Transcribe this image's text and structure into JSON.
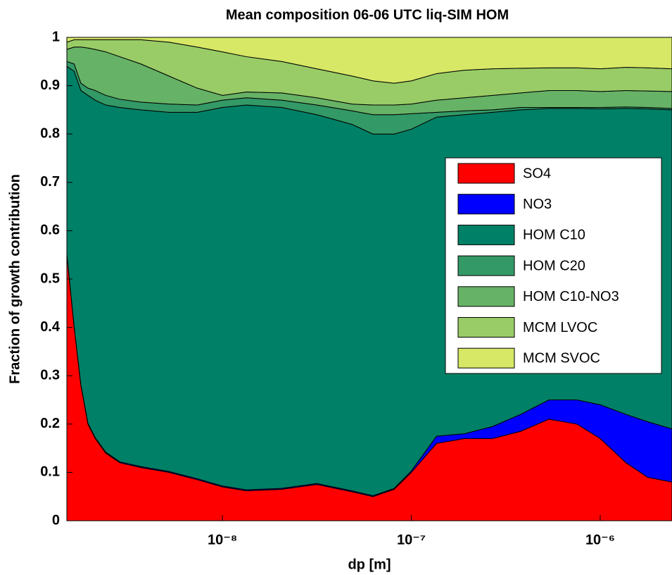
{
  "chart_data": {
    "type": "stacked_area",
    "title": "Mean composition 06-06 UTC liq-SIM HOM",
    "x_label": "dp [m]",
    "y_label": "Fraction of growth contribution",
    "x_log": true,
    "xlim": [
      1.5e-09,
      2.4e-06
    ],
    "ylim": [
      0,
      1
    ],
    "xticks": [
      {
        "value": 1e-08,
        "label": "10⁻⁸"
      },
      {
        "value": 1e-07,
        "label": "10⁻⁷"
      },
      {
        "value": 1e-06,
        "label": "10⁻⁶"
      }
    ],
    "yticks": [
      0,
      0.1,
      0.2,
      0.3,
      0.4,
      0.5,
      0.6,
      0.7,
      0.8,
      0.9,
      1
    ],
    "legend": "right",
    "x": [
      1.5e-09,
      1.64e-09,
      1.78e-09,
      1.94e-09,
      2.12e-09,
      2.41e-09,
      2.86e-09,
      3.7e-09,
      5.21e-09,
      7.35e-09,
      1e-08,
      1.34e-08,
      2.06e-08,
      3.16e-08,
      4.85e-08,
      6.27e-08,
      8.11e-08,
      1e-07,
      1.36e-07,
      1.91e-07,
      2.69e-07,
      3.79e-07,
      5.35e-07,
      7.53e-07,
      1e-06,
      1.37e-06,
      1.78e-06,
      2.4e-06
    ],
    "series": [
      {
        "name": "SO4",
        "color": "#ff0000",
        "values": [
          0.55,
          0.4,
          0.28,
          0.2,
          0.17,
          0.14,
          0.12,
          0.11,
          0.1,
          0.085,
          0.07,
          0.062,
          0.065,
          0.075,
          0.06,
          0.05,
          0.065,
          0.1,
          0.16,
          0.17,
          0.17,
          0.185,
          0.21,
          0.2,
          0.17,
          0.12,
          0.09,
          0.08
        ]
      },
      {
        "name": "NO3",
        "color": "#0000ff",
        "values": [
          0.002,
          0.002,
          0.002,
          0.002,
          0.002,
          0.002,
          0.002,
          0.002,
          0.002,
          0.002,
          0.002,
          0.002,
          0.002,
          0.002,
          0.002,
          0.002,
          0.002,
          0.003,
          0.015,
          0.01,
          0.025,
          0.035,
          0.04,
          0.05,
          0.07,
          0.1,
          0.115,
          0.11
        ]
      },
      {
        "name": "HOM C10",
        "color": "#008066",
        "values": [
          0.388,
          0.528,
          0.608,
          0.678,
          0.698,
          0.718,
          0.733,
          0.738,
          0.743,
          0.758,
          0.783,
          0.796,
          0.788,
          0.763,
          0.758,
          0.748,
          0.733,
          0.707,
          0.66,
          0.66,
          0.65,
          0.63,
          0.603,
          0.603,
          0.612,
          0.633,
          0.647,
          0.66
        ]
      },
      {
        "name": "HOM C20",
        "color": "#339966",
        "values": [
          0.01,
          0.015,
          0.015,
          0.015,
          0.02,
          0.02,
          0.017,
          0.016,
          0.017,
          0.015,
          0.015,
          0.015,
          0.015,
          0.02,
          0.028,
          0.04,
          0.04,
          0.032,
          0.01,
          0.008,
          0.005,
          0.005,
          0.002,
          0.002,
          0.003,
          0.003,
          0.003,
          0.003
        ]
      },
      {
        "name": "HOM C10-NO3",
        "color": "#66b266",
        "values": [
          0.025,
          0.035,
          0.075,
          0.083,
          0.085,
          0.09,
          0.088,
          0.079,
          0.058,
          0.035,
          0.01,
          0.012,
          0.015,
          0.015,
          0.014,
          0.02,
          0.02,
          0.02,
          0.025,
          0.027,
          0.03,
          0.03,
          0.035,
          0.035,
          0.033,
          0.034,
          0.034,
          0.035
        ]
      },
      {
        "name": "MCM LVOC",
        "color": "#99cc66",
        "values": [
          0.015,
          0.015,
          0.015,
          0.017,
          0.02,
          0.025,
          0.035,
          0.05,
          0.07,
          0.085,
          0.09,
          0.073,
          0.065,
          0.06,
          0.058,
          0.05,
          0.045,
          0.048,
          0.055,
          0.057,
          0.055,
          0.051,
          0.047,
          0.047,
          0.047,
          0.048,
          0.048,
          0.047
        ]
      },
      {
        "name": "MCM SVOC",
        "color": "#d6e866",
        "values": [
          0.01,
          0.005,
          0.005,
          0.005,
          0.005,
          0.005,
          0.005,
          0.005,
          0.01,
          0.02,
          0.03,
          0.04,
          0.05,
          0.065,
          0.08,
          0.09,
          0.095,
          0.09,
          0.075,
          0.068,
          0.065,
          0.064,
          0.063,
          0.063,
          0.065,
          0.062,
          0.063,
          0.065
        ]
      }
    ]
  }
}
